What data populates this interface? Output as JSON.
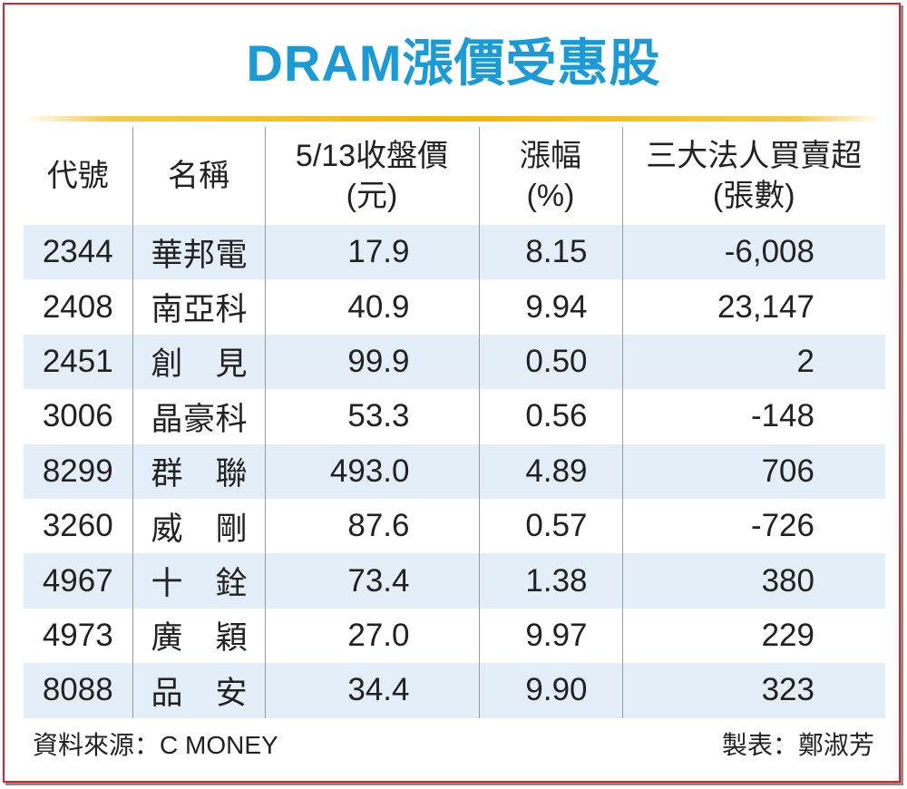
{
  "title": "DRAM漲價受惠股",
  "chart_data": {
    "type": "table",
    "title": "DRAM漲價受惠股",
    "columns": [
      {
        "line1": "代號",
        "line2": ""
      },
      {
        "line1": "名稱",
        "line2": ""
      },
      {
        "line1": "5/13收盤價",
        "line2": "(元)"
      },
      {
        "line1": "漲幅",
        "line2": "(%)"
      },
      {
        "line1": "三大法人買賣超",
        "line2": "(張數)"
      }
    ],
    "rows": [
      {
        "code": "2344",
        "name": "華邦電",
        "close": "17.9",
        "change": "8.15",
        "net": "-6,008"
      },
      {
        "code": "2408",
        "name": "南亞科",
        "close": "40.9",
        "change": "9.94",
        "net": "23,147"
      },
      {
        "code": "2451",
        "name": "創見",
        "close": "99.9",
        "change": "0.50",
        "net": "2"
      },
      {
        "code": "3006",
        "name": "晶豪科",
        "close": "53.3",
        "change": "0.56",
        "net": "-148"
      },
      {
        "code": "8299",
        "name": "群聯",
        "close": "493.0",
        "change": "4.89",
        "net": "706"
      },
      {
        "code": "3260",
        "name": "威剛",
        "close": "87.6",
        "change": "0.57",
        "net": "-726"
      },
      {
        "code": "4967",
        "name": "十銓",
        "close": "73.4",
        "change": "1.38",
        "net": "380"
      },
      {
        "code": "4973",
        "name": "廣穎",
        "close": "27.0",
        "change": "9.97",
        "net": "229"
      },
      {
        "code": "8088",
        "name": "品安",
        "close": "34.4",
        "change": "9.90",
        "net": "323"
      }
    ]
  },
  "footer": {
    "source": "資料來源：C MONEY",
    "maker": "製表：鄭淑芳"
  },
  "colors": {
    "title": "#1a9ad6",
    "rule": "#f2b705",
    "stripe": "#e3eef8",
    "frame": "#d9262c"
  }
}
